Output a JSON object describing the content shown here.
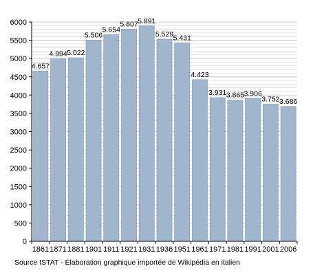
{
  "chart_data": {
    "type": "bar",
    "categories": [
      "1861",
      "1871",
      "1881",
      "1901",
      "1911",
      "1921",
      "1931",
      "1936",
      "1951",
      "1961",
      "1971",
      "1981",
      "1991",
      "2001",
      "2006"
    ],
    "values": [
      4657,
      4994,
      5022,
      5506,
      5654,
      5807,
      5891,
      5529,
      5431,
      4423,
      3931,
      3865,
      3906,
      3752,
      3686
    ],
    "value_labels": [
      "4.657",
      "4.994",
      "5.022",
      "5.506",
      "5.654",
      "5.807",
      "5.891",
      "5.529",
      "5.431",
      "4.423",
      "3.931",
      "3.865",
      "3.906",
      "3.752",
      "3.686"
    ],
    "title": "",
    "xlabel": "",
    "ylabel": "",
    "ylim": [
      0,
      6000
    ],
    "yticks": [
      0,
      500,
      1000,
      1500,
      2000,
      2500,
      3000,
      3500,
      4000,
      4500,
      5000,
      5500,
      6000
    ],
    "grid": true,
    "bar_color": "#9fb6cd",
    "bar_edge_color": "#7f97ad",
    "grid_color": "#c8c8c8"
  },
  "source_text": "Source ISTAT - Élaboration graphique importée de Wikipédia en italien"
}
